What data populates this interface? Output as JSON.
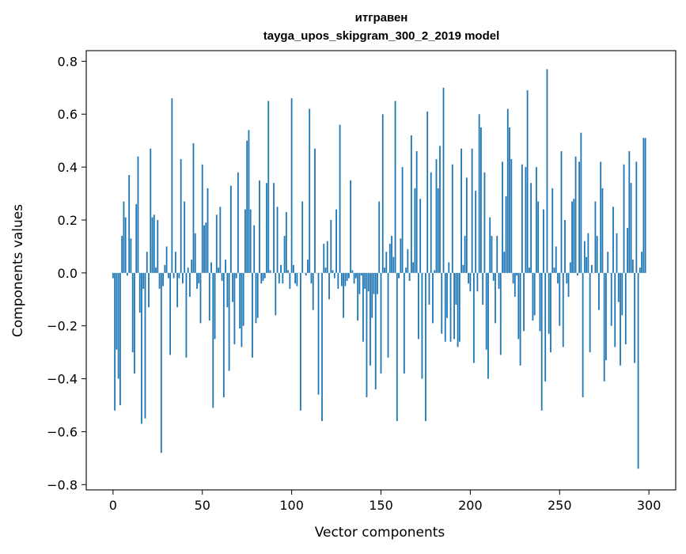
{
  "chart_data": {
    "type": "bar",
    "title": [
      "итгравен",
      "tayga_upos_skipgram_300_2_2019 model"
    ],
    "xlabel": "Vector components",
    "ylabel": "Components values",
    "xlim": [
      -15,
      315
    ],
    "ylim": [
      -0.82,
      0.84
    ],
    "xticks": [
      0,
      50,
      100,
      150,
      200,
      250,
      300
    ],
    "yticks": [
      -0.8,
      -0.6,
      -0.4,
      -0.2,
      0.0,
      0.2,
      0.4,
      0.6,
      0.8
    ],
    "xtick_labels": [
      "0",
      "50",
      "100",
      "150",
      "200",
      "250",
      "300"
    ],
    "ytick_labels": [
      "−0.8",
      "−0.6",
      "−0.4",
      "−0.2",
      "0.0",
      "0.2",
      "0.4",
      "0.6",
      "0.8"
    ],
    "bar_color": "#1f77b4",
    "grid": false,
    "series": [
      {
        "x_start": 0,
        "values": [
          -0.02,
          -0.52,
          -0.29,
          -0.4,
          -0.5,
          0.14,
          0.27,
          0.21,
          -0.01,
          0.37,
          0.13,
          -0.3,
          -0.38,
          0.26,
          0.44,
          -0.15,
          -0.57,
          -0.06,
          -0.55,
          0.08,
          -0.13,
          0.47,
          0.21,
          0.22,
          0.02,
          0.2,
          -0.06,
          -0.68,
          -0.05,
          0.03,
          0.1,
          -0.02,
          -0.31,
          0.66,
          -0.02,
          0.08,
          -0.13,
          -0.02,
          0.43,
          -0.04,
          0.27,
          -0.32,
          0.02,
          -0.09,
          0.05,
          0.49,
          0.15,
          -0.06,
          -0.04,
          -0.19,
          0.41,
          0.18,
          0.19,
          0.32,
          -0.18,
          0.04,
          -0.51,
          -0.25,
          0.22,
          0.02,
          0.25,
          -0.03,
          -0.47,
          0.05,
          -0.13,
          -0.37,
          0.33,
          -0.11,
          -0.27,
          -0.02,
          0.38,
          -0.21,
          -0.28,
          -0.2,
          0.24,
          0.5,
          0.54,
          0.24,
          -0.32,
          0.18,
          -0.19,
          -0.17,
          0.35,
          -0.04,
          -0.03,
          -0.02,
          0.34,
          0.65,
          0.01,
          0.0,
          0.34,
          -0.16,
          0.25,
          -0.04,
          0.03,
          -0.04,
          0.14,
          0.23,
          0.01,
          -0.06,
          0.66,
          0.03,
          -0.04,
          -0.05,
          0.0,
          -0.52,
          0.27,
          0.0,
          -0.01,
          0.05,
          0.62,
          -0.04,
          -0.14,
          0.47,
          0.0,
          -0.46,
          0.0,
          -0.56,
          0.11,
          0.02,
          0.12,
          -0.1,
          0.2,
          0.01,
          -0.02,
          0.24,
          -0.06,
          0.56,
          -0.05,
          -0.17,
          -0.05,
          -0.03,
          -0.02,
          0.35,
          0.01,
          -0.04,
          -0.02,
          -0.18,
          -0.08,
          -0.01,
          -0.26,
          -0.06,
          -0.47,
          -0.07,
          -0.35,
          -0.17,
          -0.08,
          -0.44,
          -0.08,
          0.27,
          -0.38,
          0.6,
          0.02,
          0.08,
          -0.32,
          0.11,
          0.14,
          0.06,
          0.65,
          -0.56,
          -0.02,
          0.13,
          0.4,
          -0.38,
          0.02,
          0.09,
          -0.03,
          0.52,
          0.04,
          0.32,
          0.46,
          -0.25,
          0.28,
          -0.4,
          0.0,
          -0.56,
          0.61,
          -0.12,
          0.38,
          -0.19,
          0.01,
          0.43,
          0.32,
          0.48,
          -0.23,
          0.7,
          -0.26,
          -0.17,
          0.04,
          -0.26,
          0.41,
          -0.25,
          -0.12,
          -0.28,
          -0.26,
          0.47,
          0.03,
          0.14,
          0.36,
          -0.04,
          -0.07,
          0.47,
          -0.34,
          0.31,
          -0.07,
          0.6,
          0.55,
          -0.12,
          0.38,
          -0.29,
          -0.4,
          0.21,
          0.14,
          -0.03,
          -0.19,
          0.14,
          -0.06,
          -0.31,
          0.42,
          0.08,
          0.29,
          0.62,
          0.55,
          0.43,
          -0.04,
          -0.09,
          -0.01,
          -0.25,
          -0.35,
          0.41,
          -0.22,
          0.4,
          0.69,
          0.02,
          0.34,
          -0.18,
          -0.16,
          0.4,
          0.27,
          -0.22,
          -0.52,
          0.24,
          -0.41,
          0.77,
          -0.23,
          -0.3,
          0.32,
          0.02,
          0.1,
          -0.04,
          -0.2,
          0.46,
          -0.28,
          0.2,
          -0.04,
          -0.09,
          0.04,
          0.27,
          0.28,
          0.44,
          -0.01,
          0.42,
          0.53,
          -0.47,
          0.12,
          0.06,
          0.15,
          -0.3,
          0.03,
          0.0,
          0.27,
          0.14,
          -0.14,
          0.42,
          0.32,
          -0.41,
          -0.33,
          0.08,
          0.0,
          -0.2,
          0.25,
          -0.28,
          0.15,
          -0.11,
          -0.35,
          -0.16,
          0.41,
          -0.27,
          0.17,
          0.46,
          0.34,
          0.05,
          -0.34,
          0.42,
          -0.74,
          0.02,
          0.08,
          0.51,
          0.51
        ]
      }
    ]
  }
}
